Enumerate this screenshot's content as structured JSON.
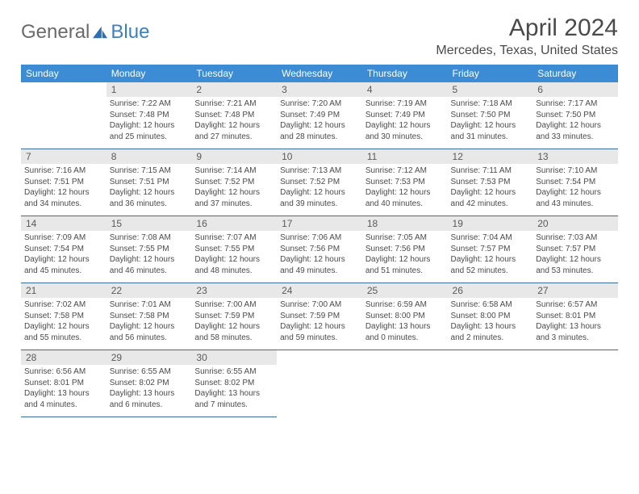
{
  "brand": {
    "part1": "General",
    "part2": "Blue"
  },
  "title": "April 2024",
  "location": "Mercedes, Texas, United States",
  "colors": {
    "header_bg": "#3b8cd4",
    "header_text": "#ffffff",
    "daynum_bg": "#e8e8e8",
    "text": "#4a4a4a",
    "rule": "#3b6b9a",
    "brand_gray": "#6a6a6a",
    "brand_blue": "#3b7fc4"
  },
  "typography": {
    "title_fontsize": 30,
    "location_fontsize": 16,
    "header_fontsize": 12,
    "body_fontsize": 10
  },
  "day_names": [
    "Sunday",
    "Monday",
    "Tuesday",
    "Wednesday",
    "Thursday",
    "Friday",
    "Saturday"
  ],
  "weeks": [
    [
      {
        "n": "",
        "lines": []
      },
      {
        "n": "1",
        "lines": [
          "Sunrise: 7:22 AM",
          "Sunset: 7:48 PM",
          "Daylight: 12 hours",
          "and 25 minutes."
        ]
      },
      {
        "n": "2",
        "lines": [
          "Sunrise: 7:21 AM",
          "Sunset: 7:48 PM",
          "Daylight: 12 hours",
          "and 27 minutes."
        ]
      },
      {
        "n": "3",
        "lines": [
          "Sunrise: 7:20 AM",
          "Sunset: 7:49 PM",
          "Daylight: 12 hours",
          "and 28 minutes."
        ]
      },
      {
        "n": "4",
        "lines": [
          "Sunrise: 7:19 AM",
          "Sunset: 7:49 PM",
          "Daylight: 12 hours",
          "and 30 minutes."
        ]
      },
      {
        "n": "5",
        "lines": [
          "Sunrise: 7:18 AM",
          "Sunset: 7:50 PM",
          "Daylight: 12 hours",
          "and 31 minutes."
        ]
      },
      {
        "n": "6",
        "lines": [
          "Sunrise: 7:17 AM",
          "Sunset: 7:50 PM",
          "Daylight: 12 hours",
          "and 33 minutes."
        ]
      }
    ],
    [
      {
        "n": "7",
        "lines": [
          "Sunrise: 7:16 AM",
          "Sunset: 7:51 PM",
          "Daylight: 12 hours",
          "and 34 minutes."
        ]
      },
      {
        "n": "8",
        "lines": [
          "Sunrise: 7:15 AM",
          "Sunset: 7:51 PM",
          "Daylight: 12 hours",
          "and 36 minutes."
        ]
      },
      {
        "n": "9",
        "lines": [
          "Sunrise: 7:14 AM",
          "Sunset: 7:52 PM",
          "Daylight: 12 hours",
          "and 37 minutes."
        ]
      },
      {
        "n": "10",
        "lines": [
          "Sunrise: 7:13 AM",
          "Sunset: 7:52 PM",
          "Daylight: 12 hours",
          "and 39 minutes."
        ]
      },
      {
        "n": "11",
        "lines": [
          "Sunrise: 7:12 AM",
          "Sunset: 7:53 PM",
          "Daylight: 12 hours",
          "and 40 minutes."
        ]
      },
      {
        "n": "12",
        "lines": [
          "Sunrise: 7:11 AM",
          "Sunset: 7:53 PM",
          "Daylight: 12 hours",
          "and 42 minutes."
        ]
      },
      {
        "n": "13",
        "lines": [
          "Sunrise: 7:10 AM",
          "Sunset: 7:54 PM",
          "Daylight: 12 hours",
          "and 43 minutes."
        ]
      }
    ],
    [
      {
        "n": "14",
        "lines": [
          "Sunrise: 7:09 AM",
          "Sunset: 7:54 PM",
          "Daylight: 12 hours",
          "and 45 minutes."
        ]
      },
      {
        "n": "15",
        "lines": [
          "Sunrise: 7:08 AM",
          "Sunset: 7:55 PM",
          "Daylight: 12 hours",
          "and 46 minutes."
        ]
      },
      {
        "n": "16",
        "lines": [
          "Sunrise: 7:07 AM",
          "Sunset: 7:55 PM",
          "Daylight: 12 hours",
          "and 48 minutes."
        ]
      },
      {
        "n": "17",
        "lines": [
          "Sunrise: 7:06 AM",
          "Sunset: 7:56 PM",
          "Daylight: 12 hours",
          "and 49 minutes."
        ]
      },
      {
        "n": "18",
        "lines": [
          "Sunrise: 7:05 AM",
          "Sunset: 7:56 PM",
          "Daylight: 12 hours",
          "and 51 minutes."
        ]
      },
      {
        "n": "19",
        "lines": [
          "Sunrise: 7:04 AM",
          "Sunset: 7:57 PM",
          "Daylight: 12 hours",
          "and 52 minutes."
        ]
      },
      {
        "n": "20",
        "lines": [
          "Sunrise: 7:03 AM",
          "Sunset: 7:57 PM",
          "Daylight: 12 hours",
          "and 53 minutes."
        ]
      }
    ],
    [
      {
        "n": "21",
        "lines": [
          "Sunrise: 7:02 AM",
          "Sunset: 7:58 PM",
          "Daylight: 12 hours",
          "and 55 minutes."
        ]
      },
      {
        "n": "22",
        "lines": [
          "Sunrise: 7:01 AM",
          "Sunset: 7:58 PM",
          "Daylight: 12 hours",
          "and 56 minutes."
        ]
      },
      {
        "n": "23",
        "lines": [
          "Sunrise: 7:00 AM",
          "Sunset: 7:59 PM",
          "Daylight: 12 hours",
          "and 58 minutes."
        ]
      },
      {
        "n": "24",
        "lines": [
          "Sunrise: 7:00 AM",
          "Sunset: 7:59 PM",
          "Daylight: 12 hours",
          "and 59 minutes."
        ]
      },
      {
        "n": "25",
        "lines": [
          "Sunrise: 6:59 AM",
          "Sunset: 8:00 PM",
          "Daylight: 13 hours",
          "and 0 minutes."
        ]
      },
      {
        "n": "26",
        "lines": [
          "Sunrise: 6:58 AM",
          "Sunset: 8:00 PM",
          "Daylight: 13 hours",
          "and 2 minutes."
        ]
      },
      {
        "n": "27",
        "lines": [
          "Sunrise: 6:57 AM",
          "Sunset: 8:01 PM",
          "Daylight: 13 hours",
          "and 3 minutes."
        ]
      }
    ],
    [
      {
        "n": "28",
        "lines": [
          "Sunrise: 6:56 AM",
          "Sunset: 8:01 PM",
          "Daylight: 13 hours",
          "and 4 minutes."
        ]
      },
      {
        "n": "29",
        "lines": [
          "Sunrise: 6:55 AM",
          "Sunset: 8:02 PM",
          "Daylight: 13 hours",
          "and 6 minutes."
        ]
      },
      {
        "n": "30",
        "lines": [
          "Sunrise: 6:55 AM",
          "Sunset: 8:02 PM",
          "Daylight: 13 hours",
          "and 7 minutes."
        ]
      },
      {
        "n": "",
        "lines": []
      },
      {
        "n": "",
        "lines": []
      },
      {
        "n": "",
        "lines": []
      },
      {
        "n": "",
        "lines": []
      }
    ]
  ]
}
